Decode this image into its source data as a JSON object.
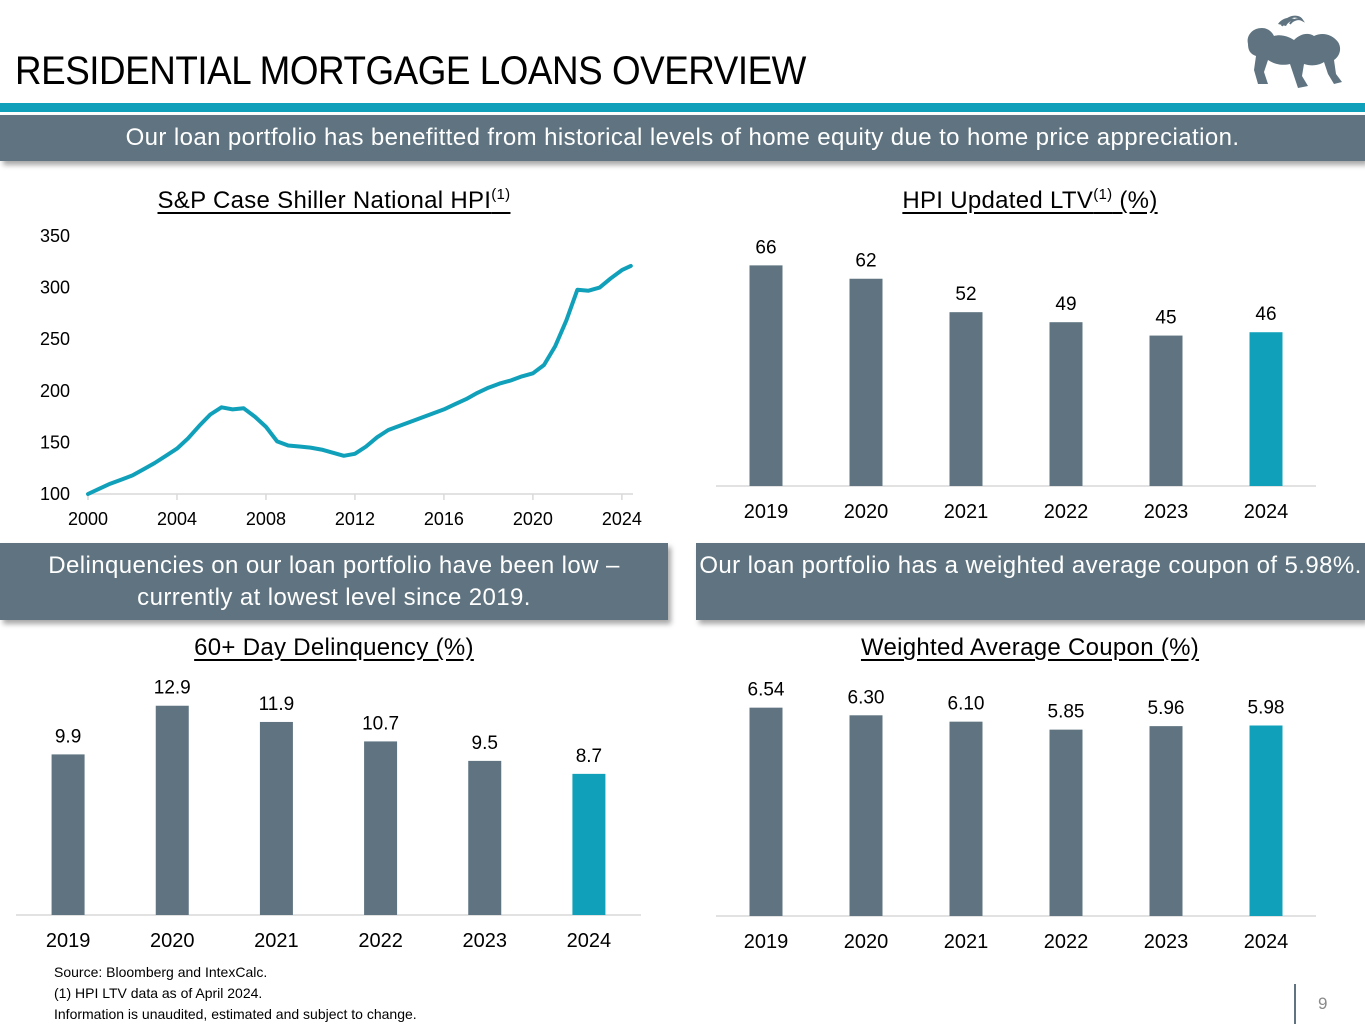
{
  "page": {
    "title": "RESIDENTIAL MORTGAGE LOANS OVERVIEW",
    "banner_top": "Our loan portfolio has benefitted from historical levels of home equity due to home price appreciation.",
    "banner_left": "Delinquencies on our loan portfolio have been low – currently at lowest level since 2019.",
    "banner_right": "Our loan portfolio has a weighted average coupon of 5.98%.",
    "footnotes": [
      "Source:  Bloomberg and IntexCalc.",
      "(1) HPI LTV data as of April 2024.",
      "Information is unaudited, estimated and subject to change."
    ],
    "page_number": "9"
  },
  "colors": {
    "accent": "#10a0ba",
    "bar": "#5f7480",
    "banner": "#5f7480",
    "axis": "#d9d9d9"
  },
  "logo": {
    "icon": "lion-icon"
  },
  "chart_data": [
    {
      "id": "hpi",
      "type": "line",
      "title": "S&P Case Shiller National HPI",
      "title_sup": "(1)",
      "xlim": [
        2000,
        2024.5
      ],
      "ylim": [
        100,
        350
      ],
      "xticks": [
        "2000",
        "2004",
        "2008",
        "2012",
        "2016",
        "2020",
        "2024"
      ],
      "yticks": [
        "350",
        "300",
        "250",
        "200",
        "150",
        "100"
      ],
      "grid": false,
      "series": [
        {
          "x": [
            2000,
            2000.5,
            2001,
            2001.5,
            2002,
            2002.5,
            2003,
            2003.5,
            2004,
            2004.5,
            2005,
            2005.5,
            2006,
            2006.5,
            2007,
            2007.5,
            2008,
            2008.5,
            2009,
            2009.5,
            2010,
            2010.5,
            2011,
            2011.5,
            2012,
            2012.5,
            2013,
            2013.5,
            2014,
            2014.5,
            2015,
            2015.5,
            2016,
            2016.5,
            2017,
            2017.5,
            2018,
            2018.5,
            2019,
            2019.5,
            2020,
            2020.5,
            2021,
            2021.5,
            2022,
            2022.5,
            2023,
            2023.5,
            2024,
            2024.4
          ],
          "y": [
            100,
            105,
            110,
            114,
            118,
            124,
            130,
            137,
            144,
            154,
            166,
            177,
            184,
            182,
            183,
            175,
            165,
            151,
            147,
            146,
            145,
            143,
            140,
            137,
            139,
            146,
            155,
            162,
            166,
            170,
            174,
            178,
            182,
            187,
            192,
            198,
            203,
            207,
            210,
            214,
            217,
            225,
            243,
            268,
            298,
            297,
            300,
            309,
            317,
            321
          ]
        }
      ]
    },
    {
      "id": "ltv",
      "type": "bar",
      "title": "HPI Updated LTV",
      "title_sup": "(1)",
      "title_suffix": " (%)",
      "categories": [
        "2019",
        "2020",
        "2021",
        "2022",
        "2023",
        "2024"
      ],
      "values": [
        66,
        62,
        52,
        49,
        45,
        46
      ],
      "labels": [
        "66",
        "62",
        "52",
        "49",
        "45",
        "46"
      ],
      "ylim": [
        0,
        70
      ],
      "highlight_index": 5
    },
    {
      "id": "delinquency",
      "type": "bar",
      "title": "60+ Day Delinquency (%)",
      "categories": [
        "2019",
        "2020",
        "2021",
        "2022",
        "2023",
        "2024"
      ],
      "values": [
        9.9,
        12.9,
        11.9,
        10.7,
        9.5,
        8.7
      ],
      "labels": [
        "9.9",
        "12.9",
        "11.9",
        "10.7",
        "9.5",
        "8.7"
      ],
      "ylim": [
        0,
        13.5
      ],
      "highlight_index": 5
    },
    {
      "id": "coupon",
      "type": "bar",
      "title": "Weighted Average Coupon (%)",
      "categories": [
        "2019",
        "2020",
        "2021",
        "2022",
        "2023",
        "2024"
      ],
      "values": [
        6.54,
        6.3,
        6.1,
        5.85,
        5.96,
        5.98
      ],
      "labels": [
        "6.54",
        "6.30",
        "6.10",
        "5.85",
        "5.96",
        "5.98"
      ],
      "ylim": [
        0,
        7.0
      ],
      "highlight_index": 5
    }
  ]
}
